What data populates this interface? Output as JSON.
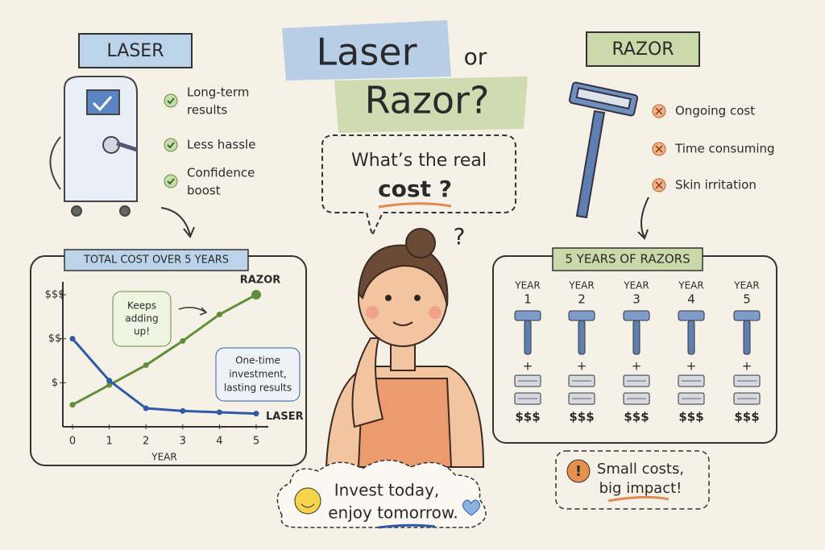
{
  "title": {
    "line1": "Laser",
    "or": "or",
    "line2": "Razor?"
  },
  "laser": {
    "label": "LASER",
    "benefits": [
      [
        "Long-term",
        "results"
      ],
      [
        "Less hassle"
      ],
      [
        "Confidence",
        "boost"
      ]
    ]
  },
  "razor": {
    "label": "RAZOR",
    "drawbacks": [
      "Ongoing cost",
      "Time consuming",
      "Skin irritation"
    ]
  },
  "question": {
    "line1": "What’s the real",
    "line2": "cost ?",
    "mark": "?"
  },
  "chart_data": {
    "type": "line",
    "title": "TOTAL COST OVER 5 YEARS",
    "x_label": "YEAR",
    "x": [
      0,
      1,
      2,
      3,
      4,
      5
    ],
    "xlim": [
      0,
      5
    ],
    "xticks": [
      0,
      1,
      2,
      3,
      4,
      5
    ],
    "ylim": [
      0,
      3.2
    ],
    "yticks": [
      {
        "value": 1,
        "label": "$"
      },
      {
        "value": 2,
        "label": "$$"
      },
      {
        "value": 3,
        "label": "$$$"
      }
    ],
    "series": [
      {
        "name": "RAZOR",
        "color": "#5f8f3a",
        "values": [
          0.5,
          0.95,
          1.4,
          1.95,
          2.55,
          3.0
        ]
      },
      {
        "name": "LASER",
        "color": "#2f5aa8",
        "values": [
          2.0,
          1.05,
          0.42,
          0.36,
          0.33,
          0.3
        ]
      }
    ],
    "annotations": [
      [
        "Keeps",
        "adding",
        "up!"
      ],
      [
        "One-time",
        "investment,",
        "lasting results"
      ]
    ]
  },
  "razor_years": {
    "title": "5 YEARS OF RAZORS",
    "years": [
      {
        "label": "YEAR",
        "number": "1",
        "plus": "+",
        "cost": "$$$"
      },
      {
        "label": "YEAR",
        "number": "2",
        "plus": "+",
        "cost": "$$$"
      },
      {
        "label": "YEAR",
        "number": "3",
        "plus": "+",
        "cost": "$$$"
      },
      {
        "label": "YEAR",
        "number": "4",
        "plus": "+",
        "cost": "$$$"
      },
      {
        "label": "YEAR",
        "number": "5",
        "plus": "+",
        "cost": "$$$"
      }
    ]
  },
  "footer": {
    "line1": "Invest today,",
    "line2": "enjoy tomorrow."
  },
  "note": {
    "line1": "Small costs,",
    "line2": "big impact!"
  }
}
